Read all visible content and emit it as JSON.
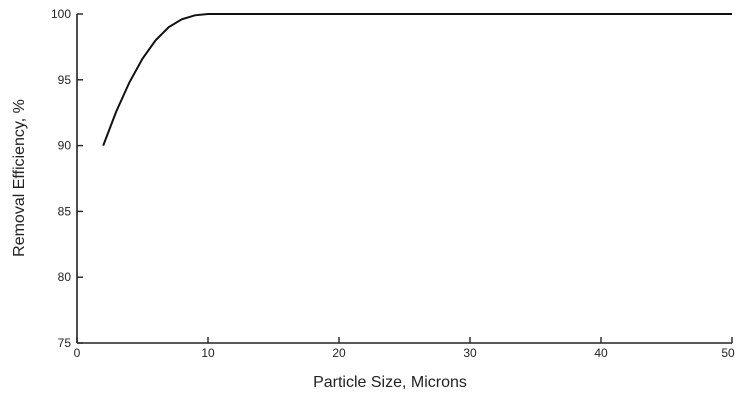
{
  "chart_data": {
    "type": "line",
    "title": "",
    "xlabel": "Particle Size, Microns",
    "ylabel": "Removal Efficiency, %",
    "xlim": [
      0,
      50
    ],
    "ylim": [
      75,
      100
    ],
    "x_ticks": [
      "0",
      "10",
      "20",
      "30",
      "40",
      "50"
    ],
    "y_ticks": [
      "75",
      "80",
      "85",
      "90",
      "95",
      "100"
    ],
    "grid": false,
    "legend": "none",
    "series": [
      {
        "color": "#111111",
        "x": [
          2,
          3,
          4,
          5,
          6,
          7,
          8,
          9,
          10,
          11,
          15,
          20,
          30,
          40,
          50
        ],
        "y": [
          90.0,
          92.6,
          94.8,
          96.6,
          98.0,
          99.0,
          99.6,
          99.9,
          100.0,
          100.0,
          100.0,
          100.0,
          100.0,
          100.0,
          100.0
        ]
      }
    ]
  }
}
